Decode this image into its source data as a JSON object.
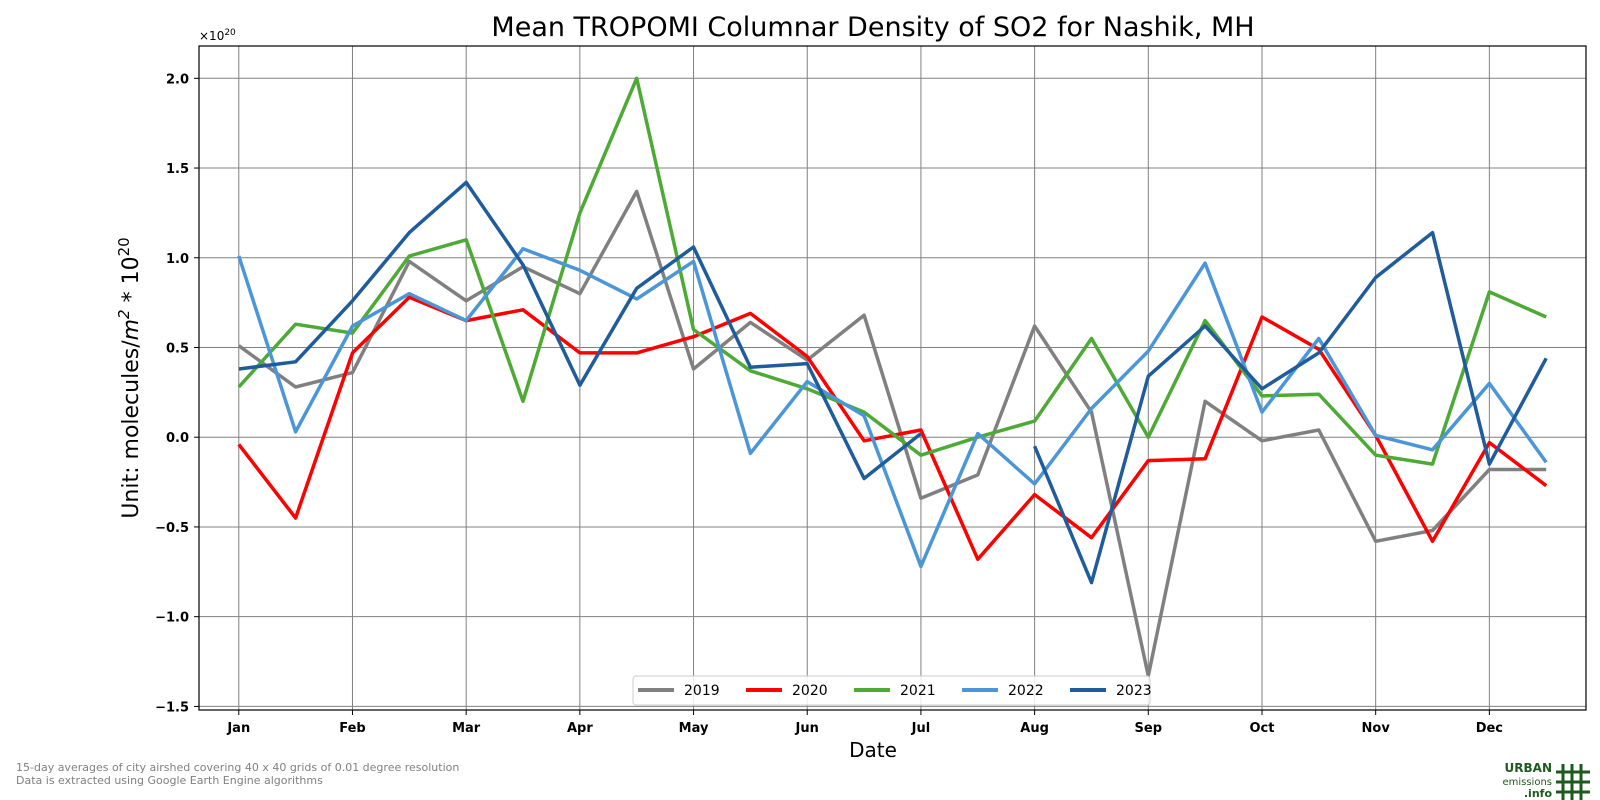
{
  "chart_data": {
    "type": "line",
    "title": "Mean TROPOMI Columnar Density of SO2 for Nashik, MH",
    "xlabel": "Date",
    "ylabel": "Unit: molecules/m² * 10²⁰",
    "ylabel_parts": {
      "pre": "Unit: molecules/",
      "m": "m",
      "m_exp": "2",
      "mid": " * 10",
      "exp": "20"
    },
    "scale_note": {
      "base": "×10",
      "exp": "20"
    },
    "ylim": [
      -1.52,
      2.18
    ],
    "xlim": [
      -0.7,
      23.7
    ],
    "y_ticks": [
      2.0,
      1.5,
      1.0,
      0.5,
      0.0,
      -0.5,
      -1.0,
      -1.5
    ],
    "y_tick_labels": [
      "2.0",
      "1.5",
      "1.0",
      "0.5",
      "0.0",
      "−0.5",
      "−1.0",
      "−1.5"
    ],
    "x_ticks": [
      0,
      2,
      4,
      6,
      8,
      10,
      12,
      14,
      16,
      18,
      20,
      22
    ],
    "x_tick_labels": [
      "Jan",
      "Feb",
      "Mar",
      "Apr",
      "May",
      "Jun",
      "Jul",
      "Aug",
      "Sep",
      "Oct",
      "Nov",
      "Dec"
    ],
    "grid": true,
    "legend_position": "bottom-center",
    "series": [
      {
        "name": "2019",
        "color": "#808080",
        "values": [
          0.51,
          0.28,
          0.36,
          0.98,
          0.76,
          0.95,
          0.8,
          1.37,
          0.38,
          0.64,
          0.43,
          0.68,
          -0.34,
          -0.21,
          0.62,
          0.14,
          -1.33,
          0.2,
          -0.02,
          0.04,
          -0.58,
          -0.52,
          -0.18,
          -0.18
        ]
      },
      {
        "name": "2020",
        "color": "#ff0000",
        "values": [
          -0.04,
          -0.45,
          0.47,
          0.78,
          0.65,
          0.71,
          0.47,
          0.47,
          0.56,
          0.69,
          0.45,
          -0.02,
          0.04,
          -0.68,
          -0.32,
          -0.56,
          -0.13,
          -0.12,
          0.67,
          0.49,
          0.01,
          -0.58,
          -0.03,
          -0.27
        ]
      },
      {
        "name": "2021",
        "color": "#4caa35",
        "values": [
          0.28,
          0.63,
          0.58,
          1.01,
          1.1,
          0.2,
          1.25,
          2.0,
          0.6,
          0.37,
          0.27,
          0.14,
          -0.1,
          0.0,
          0.09,
          0.55,
          0.0,
          0.65,
          0.23,
          0.24,
          -0.1,
          -0.15,
          0.81,
          0.67
        ]
      },
      {
        "name": "2022",
        "color": "#4a96d8",
        "values": [
          1.01,
          0.03,
          0.62,
          0.8,
          0.65,
          1.05,
          0.93,
          0.77,
          0.98,
          -0.09,
          0.31,
          0.12,
          -0.72,
          0.02,
          -0.26,
          0.16,
          0.48,
          0.97,
          0.14,
          0.55,
          0.01,
          -0.07,
          0.3,
          -0.14
        ]
      },
      {
        "name": "2023",
        "color": "#1f5c9c",
        "values": [
          0.38,
          0.42,
          0.76,
          1.14,
          1.42,
          0.96,
          0.29,
          0.83,
          1.06,
          0.39,
          0.41,
          -0.23,
          0.02,
          null,
          -0.05,
          -0.81,
          0.34,
          0.62,
          0.27,
          0.47,
          0.89,
          1.14,
          -0.15,
          0.44
        ]
      }
    ]
  },
  "footnote": {
    "line1": "15-day averages of city airshed covering 40 x 40 grids of 0.01 degree resolution",
    "line2": "Data is extracted using Google Earth Engine algorithms"
  },
  "logo": {
    "word1": "URBAN",
    "word2": "emissions",
    "word3": ".info",
    "color": "#1e5a1e"
  }
}
